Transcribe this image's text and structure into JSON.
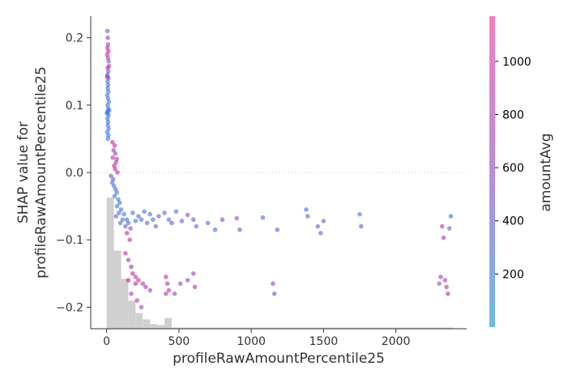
{
  "chart_data": {
    "type": "scatter",
    "title": "",
    "xlabel": "profileRawAmountPercentile25",
    "ylabel_lines": [
      "SHAP value for",
      "profileRawAmountPercentile25"
    ],
    "xlim": [
      -110,
      2490
    ],
    "ylim": [
      -0.232,
      0.232
    ],
    "x_ticks": [
      0,
      500,
      1000,
      1500,
      2000
    ],
    "x_tick_labels": [
      "0",
      "500",
      "1000",
      "1500",
      "2000"
    ],
    "y_ticks": [
      -0.2,
      -0.1,
      0.0,
      0.1,
      0.2
    ],
    "y_tick_labels": [
      "−0.2",
      "−0.1",
      "0.0",
      "0.1",
      "0.2"
    ],
    "zero_line": true,
    "colorbar": {
      "label": "amountAvg",
      "range": [
        0,
        1170
      ],
      "ticks": [
        200,
        400,
        600,
        800,
        1000
      ],
      "tick_labels": [
        "200",
        "400",
        "600",
        "800",
        "1000"
      ],
      "color_low": "#6bbbe8",
      "color_mid": "#b98be0",
      "color_high": "#f27fc0"
    },
    "point_color_low": "#1a6ee6",
    "point_color_high": "#e6007a",
    "histogram": {
      "color": "#d0d0d0",
      "bin_edges": [
        0,
        50,
        100,
        150,
        200,
        250,
        300,
        350,
        400,
        450,
        2300,
        2350
      ],
      "heights_frac": [
        0.42,
        0.25,
        0.16,
        0.09,
        0.05,
        0.03,
        0.015,
        0.012,
        0.035,
        0.004,
        0.004,
        0.004
      ]
    },
    "points": [
      [
        5,
        0.21,
        560
      ],
      [
        8,
        0.2,
        640
      ],
      [
        10,
        0.19,
        540
      ],
      [
        6,
        0.185,
        900
      ],
      [
        12,
        0.18,
        820
      ],
      [
        4,
        0.175,
        990
      ],
      [
        9,
        0.17,
        710
      ],
      [
        14,
        0.165,
        480
      ],
      [
        7,
        0.155,
        1020
      ],
      [
        11,
        0.15,
        420
      ],
      [
        5,
        0.145,
        250
      ],
      [
        13,
        0.14,
        380
      ],
      [
        6,
        0.135,
        140
      ],
      [
        10,
        0.13,
        110
      ],
      [
        8,
        0.125,
        90
      ],
      [
        12,
        0.12,
        160
      ],
      [
        4,
        0.115,
        75
      ],
      [
        9,
        0.11,
        130
      ],
      [
        15,
        0.105,
        60
      ],
      [
        7,
        0.1,
        210
      ],
      [
        11,
        0.095,
        95
      ],
      [
        5,
        0.09,
        180
      ],
      [
        13,
        0.085,
        70
      ],
      [
        6,
        0.08,
        120
      ],
      [
        10,
        0.075,
        55
      ],
      [
        8,
        0.07,
        150
      ],
      [
        14,
        0.065,
        85
      ],
      [
        4,
        0.06,
        110
      ],
      [
        12,
        0.055,
        100
      ],
      [
        9,
        0.05,
        65
      ],
      [
        16,
        0.158,
        850
      ],
      [
        3,
        0.142,
        700
      ],
      [
        18,
        0.092,
        40
      ],
      [
        2,
        0.088,
        30
      ],
      [
        40,
        0.045,
        900
      ],
      [
        55,
        0.04,
        1000
      ],
      [
        48,
        0.033,
        760
      ],
      [
        60,
        0.028,
        620
      ],
      [
        42,
        0.022,
        980
      ],
      [
        70,
        0.02,
        860
      ],
      [
        65,
        0.015,
        700
      ],
      [
        52,
        0.01,
        1080
      ],
      [
        58,
        0.005,
        900
      ],
      [
        75,
        0.0,
        820
      ],
      [
        30,
        -0.005,
        560
      ],
      [
        45,
        -0.01,
        300
      ],
      [
        38,
        -0.015,
        150
      ],
      [
        50,
        -0.02,
        80
      ],
      [
        62,
        -0.025,
        120
      ],
      [
        70,
        -0.03,
        70
      ],
      [
        55,
        -0.035,
        200
      ],
      [
        80,
        -0.04,
        90
      ],
      [
        90,
        -0.045,
        140
      ],
      [
        72,
        -0.05,
        60
      ],
      [
        100,
        -0.055,
        110
      ],
      [
        85,
        -0.06,
        250
      ],
      [
        65,
        -0.065,
        175
      ],
      [
        110,
        -0.07,
        90
      ],
      [
        95,
        -0.075,
        320
      ],
      [
        120,
        -0.062,
        160
      ],
      [
        130,
        -0.08,
        420
      ],
      [
        150,
        -0.075,
        230
      ],
      [
        140,
        -0.07,
        95
      ],
      [
        165,
        -0.083,
        520
      ],
      [
        180,
        -0.06,
        130
      ],
      [
        200,
        -0.072,
        80
      ],
      [
        220,
        -0.065,
        310
      ],
      [
        240,
        -0.07,
        140
      ],
      [
        260,
        -0.058,
        70
      ],
      [
        280,
        -0.075,
        380
      ],
      [
        300,
        -0.062,
        200
      ],
      [
        320,
        -0.07,
        120
      ],
      [
        340,
        -0.08,
        260
      ],
      [
        360,
        -0.065,
        460
      ],
      [
        400,
        -0.06,
        290
      ],
      [
        430,
        -0.07,
        170
      ],
      [
        450,
        -0.075,
        540
      ],
      [
        480,
        -0.058,
        90
      ],
      [
        520,
        -0.072,
        350
      ],
      [
        560,
        -0.063,
        600
      ],
      [
        600,
        -0.07,
        420
      ],
      [
        620,
        -0.08,
        280
      ],
      [
        700,
        -0.075,
        350
      ],
      [
        750,
        -0.085,
        140
      ],
      [
        800,
        -0.07,
        560
      ],
      [
        900,
        -0.068,
        640
      ],
      [
        920,
        -0.085,
        470
      ],
      [
        1080,
        -0.067,
        200
      ],
      [
        1180,
        -0.085,
        260
      ],
      [
        1380,
        -0.055,
        120
      ],
      [
        1390,
        -0.065,
        200
      ],
      [
        1460,
        -0.08,
        440
      ],
      [
        1480,
        -0.09,
        300
      ],
      [
        1500,
        -0.072,
        380
      ],
      [
        1750,
        -0.062,
        150
      ],
      [
        1760,
        -0.08,
        290
      ],
      [
        2320,
        -0.08,
        760
      ],
      [
        2330,
        -0.097,
        820
      ],
      [
        2370,
        -0.083,
        500
      ],
      [
        2380,
        -0.065,
        180
      ],
      [
        140,
        -0.09,
        960
      ],
      [
        160,
        -0.1,
        880
      ],
      [
        130,
        -0.12,
        920
      ],
      [
        150,
        -0.13,
        760
      ],
      [
        170,
        -0.14,
        840
      ],
      [
        180,
        -0.15,
        1000
      ],
      [
        200,
        -0.155,
        700
      ],
      [
        220,
        -0.16,
        820
      ],
      [
        250,
        -0.165,
        900
      ],
      [
        270,
        -0.17,
        760
      ],
      [
        300,
        -0.175,
        620
      ],
      [
        170,
        -0.18,
        780
      ],
      [
        210,
        -0.19,
        880
      ],
      [
        240,
        -0.2,
        620
      ],
      [
        200,
        -0.165,
        980
      ],
      [
        150,
        -0.16,
        1050
      ],
      [
        410,
        -0.155,
        950
      ],
      [
        420,
        -0.165,
        860
      ],
      [
        430,
        -0.175,
        900
      ],
      [
        410,
        -0.18,
        820
      ],
      [
        470,
        -0.18,
        560
      ],
      [
        510,
        -0.165,
        650
      ],
      [
        560,
        -0.16,
        600
      ],
      [
        600,
        -0.15,
        700
      ],
      [
        610,
        -0.17,
        780
      ],
      [
        1150,
        -0.165,
        600
      ],
      [
        1160,
        -0.18,
        520
      ],
      [
        2310,
        -0.155,
        700
      ],
      [
        2340,
        -0.16,
        780
      ],
      [
        2350,
        -0.17,
        900
      ],
      [
        2360,
        -0.18,
        850
      ],
      [
        2300,
        -0.165,
        600
      ]
    ]
  }
}
